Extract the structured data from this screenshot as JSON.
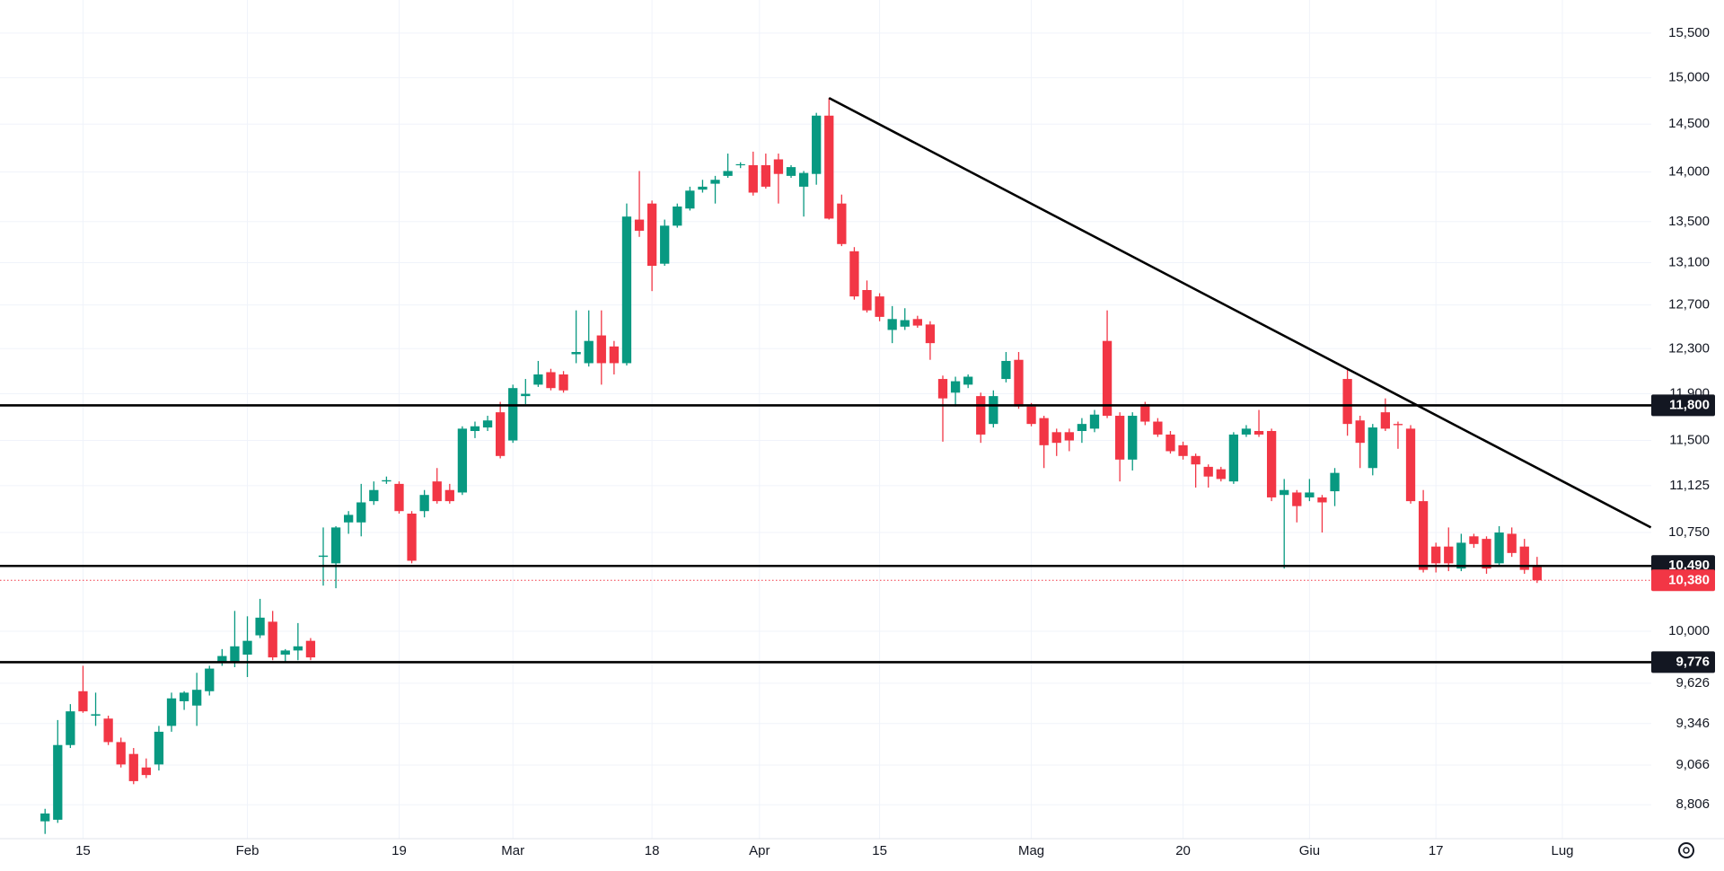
{
  "chart_data": {
    "type": "candlestick",
    "log_scale": true,
    "grid": true,
    "colors": {
      "up": "#089981",
      "down": "#f23645",
      "level": "#000000",
      "trendline": "#000000"
    },
    "ylim": [
      8590,
      15880
    ],
    "yticks": [
      {
        "value": 15500,
        "label": "15,500"
      },
      {
        "value": 15000,
        "label": "15,000"
      },
      {
        "value": 14500,
        "label": "14,500"
      },
      {
        "value": 14000,
        "label": "14,000"
      },
      {
        "value": 13500,
        "label": "13,500"
      },
      {
        "value": 13100,
        "label": "13,100"
      },
      {
        "value": 12700,
        "label": "12,700"
      },
      {
        "value": 12300,
        "label": "12,300"
      },
      {
        "value": 11900,
        "label": "11,900"
      },
      {
        "value": 11500,
        "label": "11,500"
      },
      {
        "value": 11125,
        "label": "11,125"
      },
      {
        "value": 10750,
        "label": "10,750"
      },
      {
        "value": 10000,
        "label": "10,000"
      },
      {
        "value": 9626,
        "label": "9,626"
      },
      {
        "value": 9346,
        "label": "9,346"
      },
      {
        "value": 9066,
        "label": "9,066"
      },
      {
        "value": 8806,
        "label": "8,806"
      }
    ],
    "xticks": [
      {
        "value": 3,
        "label": "15"
      },
      {
        "value": 16,
        "label": "Feb"
      },
      {
        "value": 28,
        "label": "19"
      },
      {
        "value": 37,
        "label": "Mar"
      },
      {
        "value": 48,
        "label": "18"
      },
      {
        "value": 56.5,
        "label": "Apr"
      },
      {
        "value": 66,
        "label": "15"
      },
      {
        "value": 78,
        "label": "Mag"
      },
      {
        "value": 90,
        "label": "20"
      },
      {
        "value": 100,
        "label": "Giu"
      },
      {
        "value": 110,
        "label": "17"
      },
      {
        "value": 120,
        "label": "Lug"
      }
    ],
    "levels": [
      {
        "value": 11800,
        "label": "11,800"
      },
      {
        "value": 10490,
        "label": "10,490"
      },
      {
        "value": 9776,
        "label": "9,776"
      }
    ],
    "last_price": {
      "value": 10380,
      "label": "10,380"
    },
    "trendline": {
      "start": {
        "index": 62,
        "value": 14780
      },
      "end": {
        "index": 127,
        "value": 10790
      }
    },
    "candles": [
      {
        "open": 8700,
        "high": 8780,
        "low": 8620,
        "close": 8750
      },
      {
        "open": 8710,
        "high": 9370,
        "low": 8690,
        "close": 9200
      },
      {
        "open": 9200,
        "high": 9480,
        "low": 9180,
        "close": 9430
      },
      {
        "open": 9570,
        "high": 9750,
        "low": 9420,
        "close": 9430
      },
      {
        "open": 9400,
        "high": 9560,
        "low": 9330,
        "close": 9410
      },
      {
        "open": 9380,
        "high": 9400,
        "low": 9200,
        "close": 9220
      },
      {
        "open": 9220,
        "high": 9250,
        "low": 9050,
        "close": 9070
      },
      {
        "open": 9140,
        "high": 9180,
        "low": 8940,
        "close": 8960
      },
      {
        "open": 9050,
        "high": 9110,
        "low": 8980,
        "close": 9000
      },
      {
        "open": 9070,
        "high": 9330,
        "low": 9030,
        "close": 9290
      },
      {
        "open": 9330,
        "high": 9560,
        "low": 9290,
        "close": 9520
      },
      {
        "open": 9500,
        "high": 9570,
        "low": 9440,
        "close": 9560
      },
      {
        "open": 9470,
        "high": 9700,
        "low": 9330,
        "close": 9580
      },
      {
        "open": 9570,
        "high": 9750,
        "low": 9540,
        "close": 9730
      },
      {
        "open": 9780,
        "high": 9870,
        "low": 9750,
        "close": 9820
      },
      {
        "open": 9780,
        "high": 10150,
        "low": 9740,
        "close": 9890
      },
      {
        "open": 9830,
        "high": 10110,
        "low": 9670,
        "close": 9930
      },
      {
        "open": 9970,
        "high": 10240,
        "low": 9950,
        "close": 10100
      },
      {
        "open": 10070,
        "high": 10150,
        "low": 9790,
        "close": 9810
      },
      {
        "open": 9830,
        "high": 9870,
        "low": 9780,
        "close": 9860
      },
      {
        "open": 9860,
        "high": 10060,
        "low": 9790,
        "close": 9890
      },
      {
        "open": 9930,
        "high": 9950,
        "low": 9790,
        "close": 9810
      },
      {
        "open": 10560,
        "high": 10790,
        "low": 10340,
        "close": 10570
      },
      {
        "open": 10510,
        "high": 10800,
        "low": 10320,
        "close": 10790
      },
      {
        "open": 10830,
        "high": 10920,
        "low": 10740,
        "close": 10890
      },
      {
        "open": 10830,
        "high": 11140,
        "low": 10720,
        "close": 10990
      },
      {
        "open": 11000,
        "high": 11160,
        "low": 10970,
        "close": 11090
      },
      {
        "open": 11160,
        "high": 11200,
        "low": 11140,
        "close": 11170
      },
      {
        "open": 11140,
        "high": 11160,
        "low": 10900,
        "close": 10920
      },
      {
        "open": 10900,
        "high": 10920,
        "low": 10510,
        "close": 10530
      },
      {
        "open": 10920,
        "high": 11090,
        "low": 10870,
        "close": 11050
      },
      {
        "open": 11160,
        "high": 11270,
        "low": 10980,
        "close": 11000
      },
      {
        "open": 11090,
        "high": 11140,
        "low": 10980,
        "close": 11000
      },
      {
        "open": 11070,
        "high": 11620,
        "low": 11050,
        "close": 11600
      },
      {
        "open": 11580,
        "high": 11660,
        "low": 11520,
        "close": 11620
      },
      {
        "open": 11610,
        "high": 11710,
        "low": 11580,
        "close": 11670
      },
      {
        "open": 11740,
        "high": 11830,
        "low": 11350,
        "close": 11370
      },
      {
        "open": 11500,
        "high": 11980,
        "low": 11480,
        "close": 11950
      },
      {
        "open": 11880,
        "high": 12030,
        "low": 11810,
        "close": 11900
      },
      {
        "open": 11980,
        "high": 12190,
        "low": 11960,
        "close": 12070
      },
      {
        "open": 12090,
        "high": 12120,
        "low": 11930,
        "close": 11950
      },
      {
        "open": 12070,
        "high": 12100,
        "low": 11910,
        "close": 11930
      },
      {
        "open": 12250,
        "high": 12650,
        "low": 12170,
        "close": 12270
      },
      {
        "open": 12170,
        "high": 12650,
        "low": 12140,
        "close": 12370
      },
      {
        "open": 12420,
        "high": 12650,
        "low": 11980,
        "close": 12170
      },
      {
        "open": 12320,
        "high": 12370,
        "low": 12070,
        "close": 12170
      },
      {
        "open": 12170,
        "high": 13680,
        "low": 12150,
        "close": 13550
      },
      {
        "open": 13520,
        "high": 14010,
        "low": 13350,
        "close": 13410
      },
      {
        "open": 13680,
        "high": 13710,
        "low": 12830,
        "close": 13070
      },
      {
        "open": 13090,
        "high": 13520,
        "low": 13070,
        "close": 13460
      },
      {
        "open": 13460,
        "high": 13680,
        "low": 13440,
        "close": 13650
      },
      {
        "open": 13630,
        "high": 13850,
        "low": 13610,
        "close": 13810
      },
      {
        "open": 13820,
        "high": 13920,
        "low": 13790,
        "close": 13850
      },
      {
        "open": 13880,
        "high": 13960,
        "low": 13680,
        "close": 13920
      },
      {
        "open": 13960,
        "high": 14190,
        "low": 13940,
        "close": 14010
      },
      {
        "open": 14070,
        "high": 14100,
        "low": 14040,
        "close": 14080
      },
      {
        "open": 14070,
        "high": 14210,
        "low": 13760,
        "close": 13790
      },
      {
        "open": 14070,
        "high": 14190,
        "low": 13830,
        "close": 13850
      },
      {
        "open": 14130,
        "high": 14190,
        "low": 13680,
        "close": 13980
      },
      {
        "open": 13960,
        "high": 14070,
        "low": 13940,
        "close": 14050
      },
      {
        "open": 13850,
        "high": 14010,
        "low": 13550,
        "close": 13990
      },
      {
        "open": 13980,
        "high": 14620,
        "low": 13870,
        "close": 14590
      },
      {
        "open": 14590,
        "high": 14780,
        "low": 13520,
        "close": 13530
      },
      {
        "open": 13680,
        "high": 13770,
        "low": 13260,
        "close": 13280
      },
      {
        "open": 13210,
        "high": 13250,
        "low": 12750,
        "close": 12780
      },
      {
        "open": 12840,
        "high": 12930,
        "low": 12630,
        "close": 12650
      },
      {
        "open": 12780,
        "high": 12810,
        "low": 12550,
        "close": 12590
      },
      {
        "open": 12470,
        "high": 12690,
        "low": 12350,
        "close": 12570
      },
      {
        "open": 12500,
        "high": 12670,
        "low": 12470,
        "close": 12560
      },
      {
        "open": 12570,
        "high": 12600,
        "low": 12490,
        "close": 12510
      },
      {
        "open": 12520,
        "high": 12550,
        "low": 12200,
        "close": 12350
      },
      {
        "open": 12030,
        "high": 12060,
        "low": 11490,
        "close": 11860
      },
      {
        "open": 11910,
        "high": 12050,
        "low": 11790,
        "close": 12010
      },
      {
        "open": 11980,
        "high": 12070,
        "low": 11950,
        "close": 12050
      },
      {
        "open": 11880,
        "high": 11910,
        "low": 11480,
        "close": 11550
      },
      {
        "open": 11640,
        "high": 11930,
        "low": 11610,
        "close": 11880
      },
      {
        "open": 12030,
        "high": 12270,
        "low": 12000,
        "close": 12190
      },
      {
        "open": 12200,
        "high": 12270,
        "low": 11770,
        "close": 11790
      },
      {
        "open": 11790,
        "high": 11820,
        "low": 11620,
        "close": 11640
      },
      {
        "open": 11690,
        "high": 11710,
        "low": 11270,
        "close": 11460
      },
      {
        "open": 11570,
        "high": 11600,
        "low": 11370,
        "close": 11480
      },
      {
        "open": 11570,
        "high": 11600,
        "low": 11410,
        "close": 11500
      },
      {
        "open": 11580,
        "high": 11690,
        "low": 11480,
        "close": 11640
      },
      {
        "open": 11600,
        "high": 11760,
        "low": 11570,
        "close": 11720
      },
      {
        "open": 12370,
        "high": 12650,
        "low": 11690,
        "close": 11710
      },
      {
        "open": 11710,
        "high": 11740,
        "low": 11160,
        "close": 11340
      },
      {
        "open": 11340,
        "high": 11740,
        "low": 11250,
        "close": 11710
      },
      {
        "open": 11810,
        "high": 11830,
        "low": 11630,
        "close": 11660
      },
      {
        "open": 11660,
        "high": 11690,
        "low": 11530,
        "close": 11550
      },
      {
        "open": 11550,
        "high": 11580,
        "low": 11390,
        "close": 11410
      },
      {
        "open": 11460,
        "high": 11490,
        "low": 11340,
        "close": 11370
      },
      {
        "open": 11370,
        "high": 11390,
        "low": 11110,
        "close": 11300
      },
      {
        "open": 11280,
        "high": 11300,
        "low": 11110,
        "close": 11200
      },
      {
        "open": 11260,
        "high": 11280,
        "low": 11160,
        "close": 11180
      },
      {
        "open": 11160,
        "high": 11570,
        "low": 11140,
        "close": 11550
      },
      {
        "open": 11550,
        "high": 11630,
        "low": 11530,
        "close": 11600
      },
      {
        "open": 11580,
        "high": 11760,
        "low": 11530,
        "close": 11550
      },
      {
        "open": 11580,
        "high": 11600,
        "low": 11000,
        "close": 11030
      },
      {
        "open": 11050,
        "high": 11180,
        "low": 10470,
        "close": 11090
      },
      {
        "open": 11070,
        "high": 11090,
        "low": 10830,
        "close": 10960
      },
      {
        "open": 11030,
        "high": 11180,
        "low": 11000,
        "close": 11070
      },
      {
        "open": 11030,
        "high": 11050,
        "low": 10750,
        "close": 10990
      },
      {
        "open": 11080,
        "high": 11270,
        "low": 10960,
        "close": 11230
      },
      {
        "open": 12030,
        "high": 12120,
        "low": 11540,
        "close": 11640
      },
      {
        "open": 11670,
        "high": 11710,
        "low": 11270,
        "close": 11480
      },
      {
        "open": 11270,
        "high": 11640,
        "low": 11210,
        "close": 11610
      },
      {
        "open": 11740,
        "high": 11860,
        "low": 11580,
        "close": 11600
      },
      {
        "open": 11640,
        "high": 11660,
        "low": 11430,
        "close": 11630
      },
      {
        "open": 11600,
        "high": 11630,
        "low": 10980,
        "close": 11000
      },
      {
        "open": 11000,
        "high": 11090,
        "low": 10440,
        "close": 10460
      },
      {
        "open": 10640,
        "high": 10670,
        "low": 10440,
        "close": 10510
      },
      {
        "open": 10640,
        "high": 10790,
        "low": 10450,
        "close": 10510
      },
      {
        "open": 10470,
        "high": 10740,
        "low": 10450,
        "close": 10670
      },
      {
        "open": 10720,
        "high": 10740,
        "low": 10630,
        "close": 10660
      },
      {
        "open": 10700,
        "high": 10720,
        "low": 10430,
        "close": 10470
      },
      {
        "open": 10510,
        "high": 10800,
        "low": 10490,
        "close": 10750
      },
      {
        "open": 10740,
        "high": 10790,
        "low": 10560,
        "close": 10590
      },
      {
        "open": 10640,
        "high": 10700,
        "low": 10430,
        "close": 10460
      },
      {
        "open": 10490,
        "high": 10560,
        "low": 10360,
        "close": 10380
      }
    ]
  }
}
